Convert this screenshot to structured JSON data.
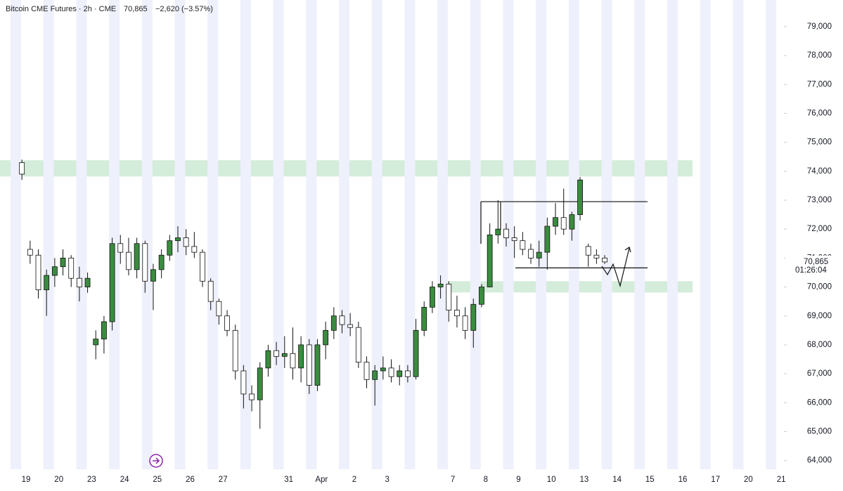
{
  "chart_data": {
    "type": "candlestick",
    "title": "Bitcoin CME Futures · 2h · CME",
    "last": {
      "value": 70865,
      "label": "70,865"
    },
    "change": "−2,620 (−3.57%)",
    "countdown": "01:26:04",
    "categories": [
      null,
      "19",
      "20",
      "23",
      "24",
      "25",
      "26",
      "27",
      null,
      "31",
      "Apr",
      "2",
      "3",
      null,
      "7",
      "8",
      "9",
      "10",
      "13",
      "14",
      "15",
      "16",
      "17",
      "20",
      "21"
    ],
    "ohlc": [
      [
        [
          74300,
          74400,
          73700,
          73900
        ]
      ],
      [
        [
          71300,
          71600,
          70800,
          71100
        ],
        [
          71100,
          71300,
          69600,
          69900
        ],
        [
          69900,
          70600,
          69000,
          70400
        ],
        [
          70400,
          71000,
          70000,
          70700
        ]
      ],
      [
        [
          70700,
          71300,
          70400,
          71000
        ],
        [
          71000,
          71100,
          70000,
          70300
        ],
        [
          70300,
          70700,
          69500,
          70000
        ],
        [
          70000,
          70500,
          69800,
          70300
        ]
      ],
      [
        [
          68000,
          68500,
          67500,
          68200
        ],
        [
          68200,
          69000,
          67700,
          68800
        ],
        [
          68800,
          71700,
          68500,
          71500
        ],
        [
          71500,
          71800,
          70800,
          71200
        ]
      ],
      [
        [
          71200,
          71700,
          70400,
          70600
        ],
        [
          70600,
          71700,
          70300,
          71500
        ],
        [
          71500,
          71600,
          69800,
          70200
        ],
        [
          70200,
          70800,
          69200,
          70600
        ]
      ],
      [
        [
          70600,
          71300,
          70300,
          71100
        ],
        [
          71100,
          71800,
          70900,
          71600
        ],
        [
          71600,
          72100,
          71200,
          71700
        ],
        [
          71700,
          72000,
          71100,
          71400
        ]
      ],
      [
        [
          71400,
          71900,
          71000,
          71200
        ],
        [
          71200,
          71300,
          70000,
          70200
        ],
        [
          70200,
          70300,
          69200,
          69500
        ],
        [
          69500,
          69600,
          68700,
          69000
        ]
      ],
      [
        [
          69000,
          69200,
          68300,
          68500
        ],
        [
          68500,
          68700,
          66800,
          67100
        ],
        [
          67100,
          67300,
          65800,
          66300
        ],
        [
          66300,
          66600,
          65700,
          66100
        ]
      ],
      [
        [
          66100,
          67400,
          65100,
          67200
        ],
        [
          67200,
          68000,
          66900,
          67800
        ],
        [
          67800,
          68100,
          67300,
          67600
        ],
        [
          67600,
          68300,
          67200,
          67700
        ]
      ],
      [
        [
          67700,
          68600,
          66800,
          67200
        ],
        [
          67200,
          68300,
          66700,
          68000
        ],
        [
          68000,
          68200,
          66300,
          66600
        ],
        [
          66600,
          68200,
          66400,
          68000
        ]
      ],
      [
        [
          68000,
          68800,
          67500,
          68500
        ],
        [
          68500,
          69300,
          68200,
          69000
        ],
        [
          69000,
          69200,
          68400,
          68700
        ],
        [
          68700,
          69100,
          68300,
          68600
        ]
      ],
      [
        [
          68600,
          68800,
          67200,
          67400
        ],
        [
          67400,
          67600,
          66500,
          66800
        ],
        [
          66800,
          67300,
          65900,
          67100
        ],
        [
          67100,
          67600,
          66800,
          67200
        ]
      ],
      [
        [
          67200,
          67500,
          66700,
          66900
        ],
        [
          66900,
          67300,
          66600,
          67100
        ],
        [
          67100,
          67300,
          66700,
          66900
        ],
        [
          66900,
          68900,
          66800,
          68500
        ]
      ],
      [
        [
          68500,
          69500,
          68300,
          69300
        ],
        [
          69300,
          70200,
          69100,
          70000
        ],
        [
          70000,
          70400,
          69600,
          70100
        ],
        [
          70100,
          70200,
          68800,
          69200
        ]
      ],
      [
        [
          69200,
          69700,
          68600,
          69000
        ],
        [
          69000,
          69300,
          68200,
          68500
        ],
        [
          68500,
          69600,
          67900,
          69400
        ],
        [
          69400,
          70100,
          69300,
          70000
        ]
      ],
      [
        [
          70000,
          72200,
          70000,
          71800
        ],
        [
          71800,
          73000,
          71500,
          72000
        ],
        [
          72000,
          72200,
          71400,
          71700
        ],
        [
          71700,
          72100,
          71000,
          71600
        ]
      ],
      [
        [
          71600,
          71900,
          71100,
          71300
        ],
        [
          71300,
          71500,
          70800,
          71000
        ],
        [
          71000,
          71600,
          70700,
          71200
        ],
        [
          71200,
          72400,
          70600,
          72100
        ]
      ],
      [
        [
          72100,
          72900,
          71800,
          72400
        ],
        [
          72400,
          73400,
          71800,
          72000
        ],
        [
          72000,
          72600,
          71600,
          72500
        ],
        [
          72500,
          73800,
          72300,
          73700
        ]
      ],
      [
        [
          71400,
          71500,
          70700,
          71100
        ],
        [
          71100,
          71300,
          70800,
          71000
        ],
        [
          71000,
          71100,
          70800,
          70865
        ]
      ],
      [],
      [],
      [],
      [],
      [],
      []
    ],
    "up_color": "#3a8c3f",
    "down_color": "#ffffff",
    "zone_color": "#cde9d3",
    "zones": [
      [
        73820,
        74380
      ],
      [
        69810,
        70200
      ]
    ],
    "levels": [
      72950,
      70660
    ],
    "ylim": [
      63700,
      79920
    ],
    "yticks": [
      {
        "value": 64000,
        "label": "64,000"
      },
      {
        "value": 65000,
        "label": "65,000"
      },
      {
        "value": 66000,
        "label": "66,000"
      },
      {
        "value": 67000,
        "label": "67,000"
      },
      {
        "value": 68000,
        "label": "68,000"
      },
      {
        "value": 69000,
        "label": "69,000"
      },
      {
        "value": 70000,
        "label": "70,000"
      },
      {
        "value": 71000,
        "label": "71,000"
      },
      {
        "value": 72000,
        "label": "72,000"
      },
      {
        "value": 73000,
        "label": "73,000"
      },
      {
        "value": 74000,
        "label": "74,000"
      },
      {
        "value": 75000,
        "label": "75,000"
      },
      {
        "value": 76000,
        "label": "76,000"
      },
      {
        "value": 77000,
        "label": "77,000"
      },
      {
        "value": 78000,
        "label": "78,000"
      },
      {
        "value": 79000,
        "label": "79,000"
      }
    ]
  }
}
